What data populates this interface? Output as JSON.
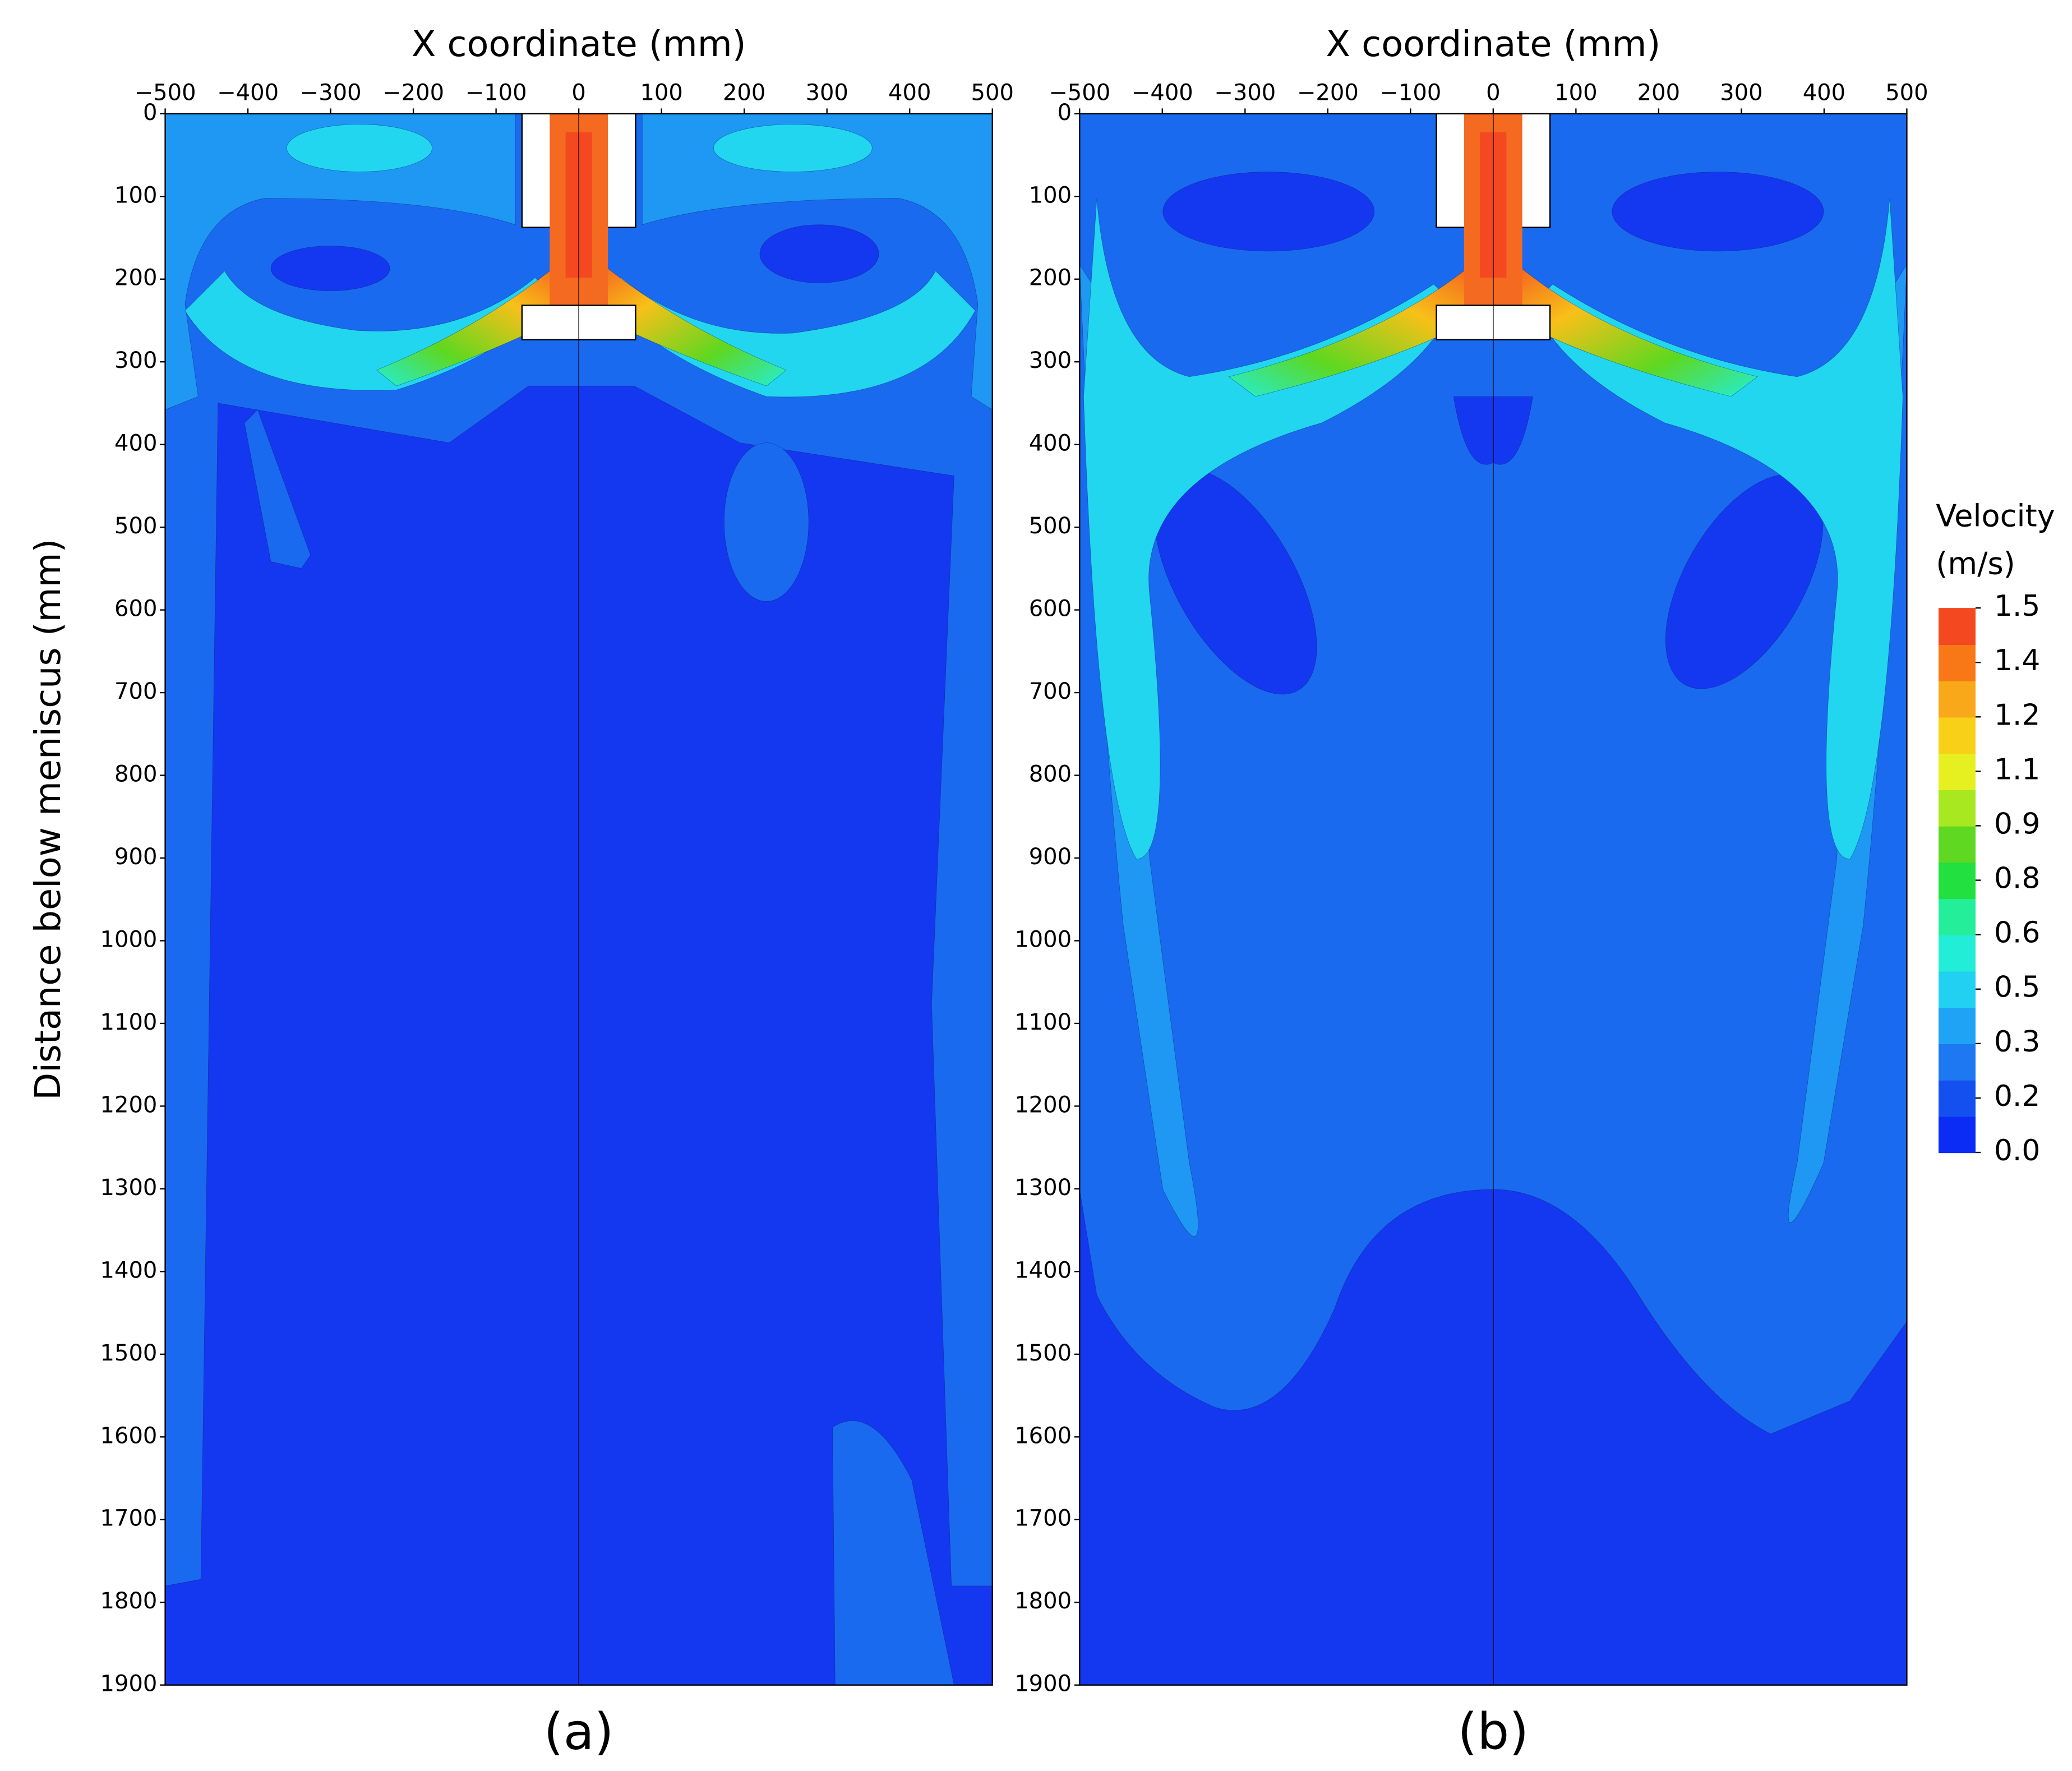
{
  "chart_data": [
    {
      "type": "contour",
      "xlabel": "X coordinate (mm)",
      "ylabel": "Distance below meniscus (mm)",
      "panel_label": "(a)",
      "xlim": [
        -500,
        500
      ],
      "ylim": [
        1900,
        0
      ],
      "xticks": [
        {
          "value": -500,
          "label": "−500"
        },
        {
          "value": -400,
          "label": "−400"
        },
        {
          "value": -300,
          "label": "−300"
        },
        {
          "value": -200,
          "label": "−200"
        },
        {
          "value": -100,
          "label": "−100"
        },
        0,
        100,
        200,
        300,
        400,
        500
      ],
      "yticks": [
        0,
        100,
        200,
        300,
        400,
        500,
        600,
        700,
        800,
        900,
        1000,
        1100,
        1200,
        1300,
        1400,
        1500,
        1600,
        1700,
        1800,
        1900
      ]
    },
    {
      "type": "contour",
      "xlabel": "X coordinate (mm)",
      "panel_label": "(b)",
      "xlim": [
        -500,
        500
      ],
      "ylim": [
        1900,
        0
      ],
      "xticks": [
        {
          "value": -500,
          "label": "−500"
        },
        {
          "value": -400,
          "label": "−400"
        },
        {
          "value": -300,
          "label": "−300"
        },
        {
          "value": -200,
          "label": "−200"
        },
        {
          "value": -100,
          "label": "−100"
        },
        0,
        100,
        200,
        300,
        400,
        500
      ],
      "yticks": [
        0,
        100,
        200,
        300,
        400,
        500,
        600,
        700,
        800,
        900,
        1000,
        1100,
        1200,
        1300,
        1400,
        1500,
        1600,
        1700,
        1800,
        1900
      ]
    }
  ],
  "colorbar": {
    "title": "Velocity",
    "unit": "(m/s)",
    "lim": [
      0,
      1.5
    ],
    "colors": [
      "#0a2cf5",
      "#1450f0",
      "#1e78f2",
      "#1fa4f5",
      "#22d0f2",
      "#22eed8",
      "#24ee9a",
      "#22e040",
      "#5ed820",
      "#a8e820",
      "#e6f020",
      "#f8d018",
      "#f8a818",
      "#f87818",
      "#f44820"
    ],
    "ticks": [
      1.5,
      {
        "value": 1.35,
        "label": "1.4"
      },
      1.2,
      {
        "value": 1.05,
        "label": "1.1"
      },
      0.9,
      {
        "value": 0.75,
        "label": "0.8"
      },
      0.6,
      {
        "value": 0.45,
        "label": "0.5"
      },
      0.3,
      {
        "value": 0.15,
        "label": "0.2"
      },
      {
        "value": 0,
        "label": "0.0"
      }
    ]
  }
}
